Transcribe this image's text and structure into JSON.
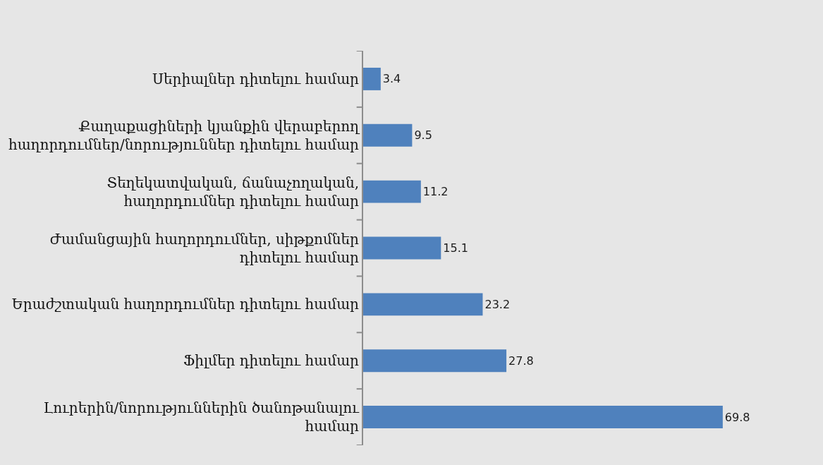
{
  "chart_data": {
    "type": "bar",
    "orientation": "horizontal",
    "categories": [
      "Սերիալներ դիտելու համար",
      "Քաղաքացիների կյանքին վերաբերող\nհաղորդումներ/նորություններ դիտելու համար",
      "Տեղեկատվական, ճանաչողական,\nհաղորդումներ դիտելու համար",
      "Ժամանցային հաղորդումներ, սիթքոմներ\nդիտելու համար",
      "Երաժշտական հաղորդումներ դիտելու համար",
      "Ֆիլմեր դիտելու համար",
      "Լուրերին/նորություններին ծանոթանալու\nհամար"
    ],
    "values": [
      3.4,
      9.5,
      11.2,
      15.1,
      23.2,
      27.8,
      69.8
    ],
    "color": "#4f81bd",
    "data_labels": true
  }
}
